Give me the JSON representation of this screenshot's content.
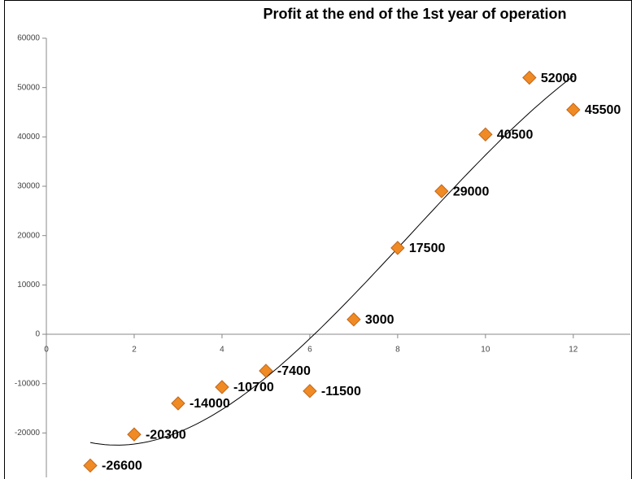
{
  "chart_data": {
    "type": "scatter",
    "title": "Profit at the end of the 1st year of operation",
    "x": [
      1,
      2,
      3,
      4,
      5,
      6,
      7,
      8,
      9,
      10,
      11,
      12
    ],
    "values": [
      -26600,
      -20300,
      -14000,
      -10700,
      -7400,
      -11500,
      3000,
      17500,
      29000,
      40500,
      52000,
      45500
    ],
    "color": "#f08a24",
    "xlim": [
      0,
      13.3
    ],
    "xticks": [
      0,
      2,
      4,
      6,
      8,
      10,
      12
    ],
    "ylim": [
      -29000,
      60000
    ],
    "yticks": [
      -20000,
      -10000,
      0,
      10000,
      20000,
      30000,
      40000,
      50000,
      60000
    ],
    "trendline": {
      "type": "polynomial",
      "order": 3,
      "color": "#000000"
    }
  }
}
